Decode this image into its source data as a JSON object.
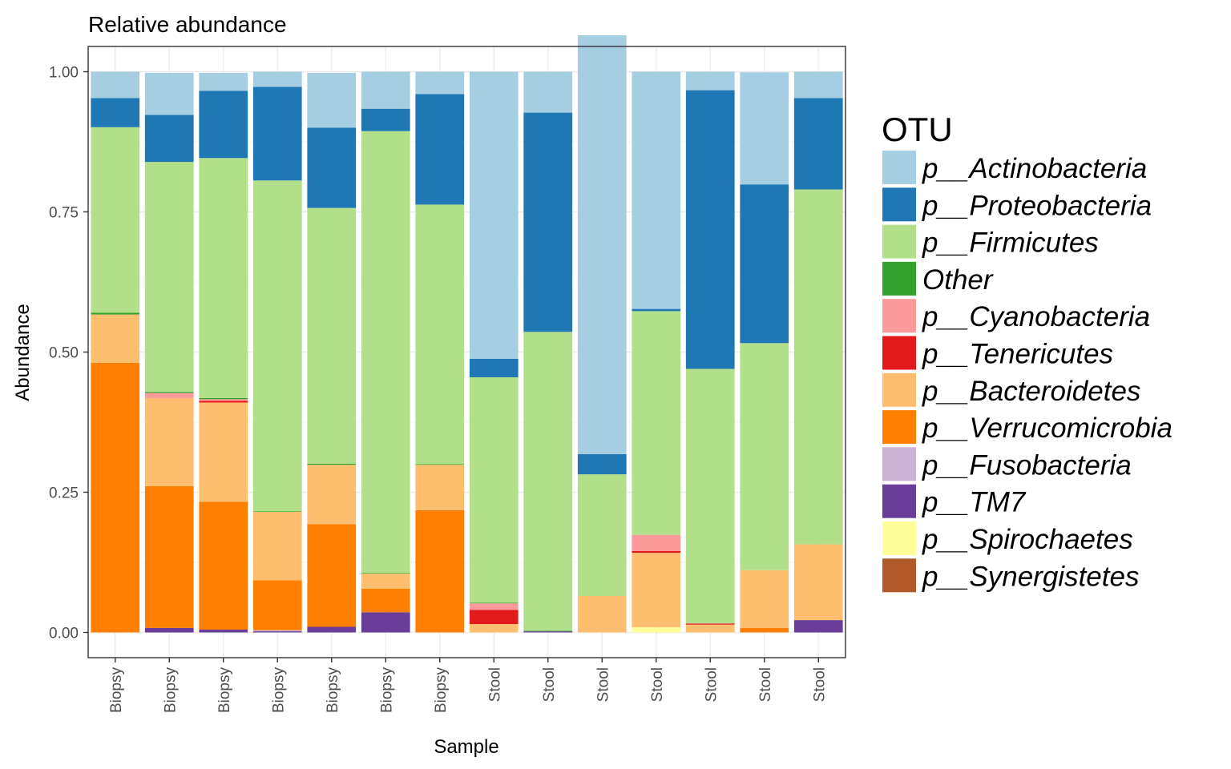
{
  "chart_data": {
    "type": "bar",
    "stacked": true,
    "title": "Relative abundance",
    "xlabel": "Sample",
    "ylabel": "Abundance",
    "ylim": [
      -0.045,
      1.045
    ],
    "yticks": [
      "0.00",
      "0.25",
      "0.50",
      "0.75",
      "1.00"
    ],
    "ytick_values": [
      0,
      0.25,
      0.5,
      0.75,
      1.0
    ],
    "grid": true,
    "legend_position": "right",
    "legend_title": "OTU",
    "categories": [
      "Biopsy",
      "Biopsy",
      "Biopsy",
      "Biopsy",
      "Biopsy",
      "Biopsy",
      "Biopsy",
      "Stool",
      "Stool",
      "Stool",
      "Stool",
      "Stool",
      "Stool",
      "Stool"
    ],
    "series": [
      {
        "name": "p__Actinobacteria",
        "color": "#A6CEE3",
        "values": [
          0.047,
          0.075,
          0.032,
          0.027,
          0.098,
          0.066,
          0.04,
          0.512,
          0.073,
          0.747,
          0.423,
          0.033,
          0.2,
          0.047
        ]
      },
      {
        "name": "p__Proteobacteria",
        "color": "#1F78B4",
        "values": [
          0.052,
          0.084,
          0.12,
          0.167,
          0.143,
          0.04,
          0.197,
          0.033,
          0.391,
          0.036,
          0.004,
          0.497,
          0.283,
          0.163
        ]
      },
      {
        "name": "p__Firmicutes",
        "color": "#B2DF8A",
        "values": [
          0.331,
          0.41,
          0.428,
          0.59,
          0.456,
          0.788,
          0.463,
          0.402,
          0.533,
          0.217,
          0.399,
          0.454,
          0.405,
          0.633
        ]
      },
      {
        "name": "Other",
        "color": "#33A02C",
        "values": [
          0.003,
          0.002,
          0.002,
          0.001,
          0.002,
          0.001,
          0.001,
          0.001,
          0.001,
          0.0,
          0.0,
          0.0,
          0.0,
          0.0
        ]
      },
      {
        "name": "p__Cyanobacteria",
        "color": "#FB9A99",
        "values": [
          0.0,
          0.009,
          0.003,
          0.0,
          0.0,
          0.0,
          0.0,
          0.012,
          0.0,
          0.0,
          0.029,
          0.0,
          0.0,
          0.0
        ]
      },
      {
        "name": "p__Tenericutes",
        "color": "#E31A1C",
        "values": [
          0.0,
          0.0,
          0.003,
          0.0,
          0.0,
          0.0,
          0.0,
          0.025,
          0.0,
          0.0,
          0.003,
          0.002,
          0.0,
          0.0
        ]
      },
      {
        "name": "p__Bacteroidetes",
        "color": "#FDBF6F",
        "values": [
          0.086,
          0.157,
          0.177,
          0.122,
          0.106,
          0.027,
          0.081,
          0.015,
          0.0,
          0.065,
          0.133,
          0.014,
          0.103,
          0.135
        ]
      },
      {
        "name": "p__Verrucomicrobia",
        "color": "#FF7F00",
        "values": [
          0.481,
          0.253,
          0.228,
          0.089,
          0.183,
          0.042,
          0.218,
          0.0,
          0.0,
          0.0,
          0.0,
          0.0,
          0.008,
          0.0
        ]
      },
      {
        "name": "p__Fusobacteria",
        "color": "#CAB2D6",
        "values": [
          0.0,
          0.0,
          0.0,
          0.002,
          0.0,
          0.0,
          0.0,
          0.0,
          0.0,
          0.0,
          0.0,
          0.0,
          0.0,
          0.0
        ]
      },
      {
        "name": "p__TM7",
        "color": "#6A3D9A",
        "values": [
          0.0,
          0.008,
          0.005,
          0.002,
          0.01,
          0.036,
          0.0,
          0.0,
          0.002,
          0.0,
          0.0,
          0.0,
          0.0,
          0.022
        ]
      },
      {
        "name": "p__Spirochaetes",
        "color": "#FFFF99",
        "values": [
          0.0,
          0.0,
          0.0,
          0.0,
          0.0,
          0.0,
          0.0,
          0.0,
          0.0,
          0.0,
          0.009,
          0.0,
          0.0,
          0.0
        ]
      },
      {
        "name": "p__Synergistetes",
        "color": "#B15928",
        "values": [
          0.0,
          0.0,
          0.0,
          0.0,
          0.0,
          0.0,
          0.0,
          0.0,
          0.0,
          0.0,
          0.0,
          0.0,
          0.0,
          0.0
        ]
      }
    ]
  }
}
